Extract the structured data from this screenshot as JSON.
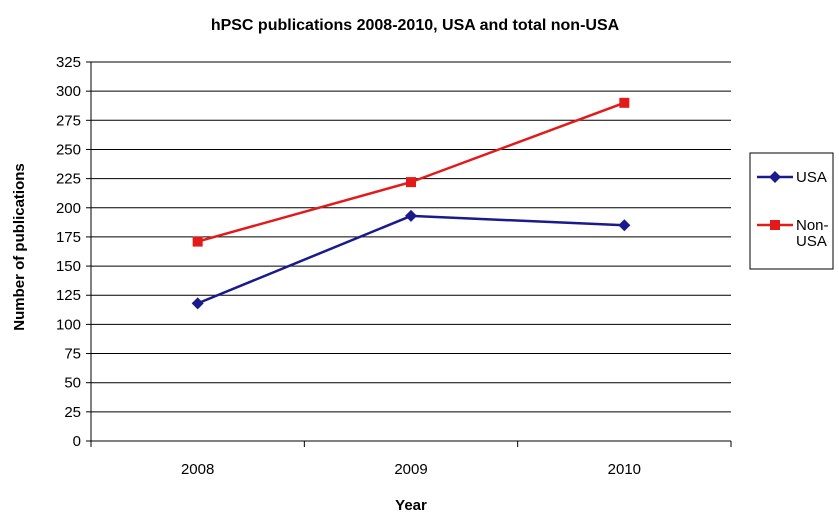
{
  "chart_data": {
    "type": "line",
    "title": "hPSC publications 2008-2010, USA and total non-USA",
    "xlabel": "Year",
    "ylabel": "Number of publications",
    "categories": [
      "2008",
      "2009",
      "2010"
    ],
    "ylim": [
      0,
      325
    ],
    "yticks": [
      0,
      25,
      50,
      75,
      100,
      125,
      150,
      175,
      200,
      225,
      250,
      275,
      300,
      325
    ],
    "grid": true,
    "legend_position": "right",
    "series": [
      {
        "name": "USA",
        "values": [
          118,
          193,
          185
        ],
        "color": "#1a1a8c",
        "marker": "diamond"
      },
      {
        "name": "Non-USA",
        "legend_lines": [
          "Non-",
          "USA"
        ],
        "values": [
          171,
          222,
          290
        ],
        "color": "#e31a1a",
        "marker": "square"
      }
    ]
  }
}
